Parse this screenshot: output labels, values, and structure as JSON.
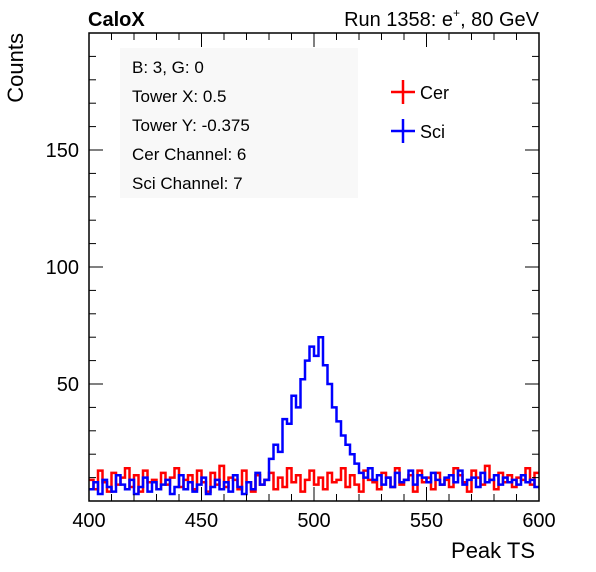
{
  "header": {
    "left_title": "CaloX",
    "right_title_prefix": "Run 1358: e",
    "right_title_sup": "+",
    "right_title_suffix": ", 80 GeV"
  },
  "info_box": [
    "B: 3, G: 0",
    "Tower X: 0.5",
    "Tower Y: -0.375",
    "Cer Channel: 6",
    "Sci Channel: 7"
  ],
  "chart_data": {
    "type": "line",
    "title": "",
    "xlabel": "Peak TS",
    "ylabel": "Counts",
    "xlim": [
      400,
      600
    ],
    "ylim": [
      0,
      200
    ],
    "x_ticks": [
      400,
      450,
      500,
      550,
      600
    ],
    "y_ticks": [
      50,
      100,
      150
    ],
    "grid": false,
    "legend_placement": "top-right",
    "x": [
      400,
      402,
      404,
      406,
      408,
      410,
      412,
      414,
      416,
      418,
      420,
      422,
      424,
      426,
      428,
      430,
      432,
      434,
      436,
      438,
      440,
      442,
      444,
      446,
      448,
      450,
      452,
      454,
      456,
      458,
      460,
      462,
      464,
      466,
      468,
      470,
      472,
      474,
      476,
      478,
      480,
      482,
      484,
      486,
      488,
      490,
      492,
      494,
      496,
      498,
      500,
      502,
      504,
      506,
      508,
      510,
      512,
      514,
      516,
      518,
      520,
      522,
      524,
      526,
      528,
      530,
      532,
      534,
      536,
      538,
      540,
      542,
      544,
      546,
      548,
      550,
      552,
      554,
      556,
      558,
      560,
      562,
      564,
      566,
      568,
      570,
      572,
      574,
      576,
      578,
      580,
      582,
      584,
      586,
      588,
      590,
      592,
      594,
      596,
      598
    ],
    "series": [
      {
        "name": "Cer",
        "color": "#ff0000",
        "values": [
          9,
          5,
          13,
          8,
          4,
          12,
          7,
          10,
          14,
          6,
          11,
          4,
          13,
          8,
          9,
          5,
          12,
          7,
          10,
          14,
          6,
          9,
          11,
          5,
          13,
          8,
          4,
          12,
          7,
          15,
          6,
          10,
          9,
          5,
          13,
          8,
          4,
          11,
          7,
          9,
          12,
          5,
          10,
          6,
          14,
          8,
          11,
          4,
          9,
          13,
          7,
          10,
          5,
          12,
          8,
          9,
          14,
          6,
          11,
          7,
          4,
          13,
          9,
          8,
          5,
          12,
          10,
          6,
          14,
          7,
          9,
          11,
          4,
          13,
          8,
          10,
          5,
          12,
          7,
          9,
          6,
          14,
          11,
          8,
          4,
          13,
          10,
          7,
          15,
          9,
          5,
          12,
          8,
          11,
          6,
          10,
          9,
          14,
          7,
          12
        ]
      },
      {
        "name": "Sci",
        "color": "#0000ff",
        "values": [
          5,
          8,
          3,
          9,
          6,
          4,
          11,
          7,
          5,
          9,
          3,
          6,
          10,
          4,
          8,
          5,
          7,
          9,
          3,
          6,
          11,
          5,
          8,
          4,
          7,
          10,
          3,
          6,
          9,
          5,
          8,
          4,
          11,
          6,
          3,
          8,
          5,
          12,
          7,
          9,
          18,
          24,
          21,
          35,
          33,
          45,
          40,
          52,
          60,
          66,
          62,
          70,
          58,
          50,
          40,
          34,
          28,
          24,
          20,
          16,
          12,
          10,
          14,
          9,
          11,
          7,
          10,
          6,
          12,
          8,
          9,
          13,
          7,
          11,
          10,
          8,
          12,
          9,
          7,
          10,
          11,
          8,
          13,
          7,
          9,
          10,
          6,
          12,
          8,
          9,
          11,
          7,
          10,
          8,
          9,
          7,
          11,
          8,
          9,
          6
        ]
      }
    ]
  }
}
